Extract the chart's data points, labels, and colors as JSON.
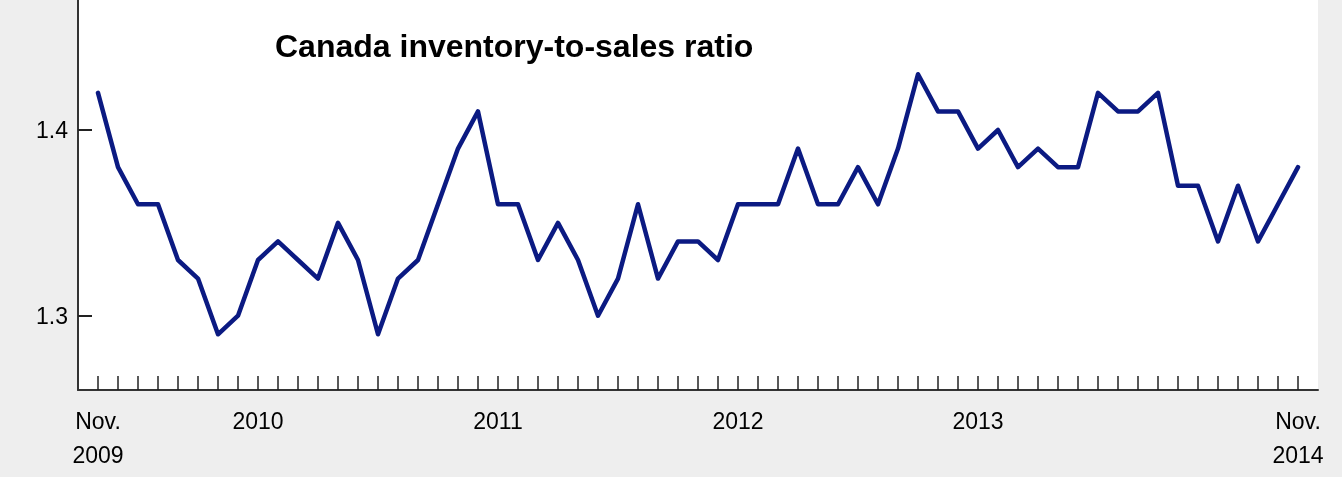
{
  "chart_data": {
    "type": "line",
    "title": "Canada inventory-to-sales ratio",
    "x": [
      "2009-11",
      "2009-12",
      "2010-01",
      "2010-02",
      "2010-03",
      "2010-04",
      "2010-05",
      "2010-06",
      "2010-07",
      "2010-08",
      "2010-09",
      "2010-10",
      "2010-11",
      "2010-12",
      "2011-01",
      "2011-02",
      "2011-03",
      "2011-04",
      "2011-05",
      "2011-06",
      "2011-07",
      "2011-08",
      "2011-09",
      "2011-10",
      "2011-11",
      "2011-12",
      "2012-01",
      "2012-02",
      "2012-03",
      "2012-04",
      "2012-05",
      "2012-06",
      "2012-07",
      "2012-08",
      "2012-09",
      "2012-10",
      "2012-11",
      "2012-12",
      "2013-01",
      "2013-02",
      "2013-03",
      "2013-04",
      "2013-05",
      "2013-06",
      "2013-07",
      "2013-08",
      "2013-09",
      "2013-10",
      "2013-11",
      "2013-12",
      "2014-01",
      "2014-02",
      "2014-03",
      "2014-04",
      "2014-05",
      "2014-06",
      "2014-07",
      "2014-08",
      "2014-09",
      "2014-10",
      "2014-11"
    ],
    "series": [
      {
        "color": "#0b1a82",
        "values": [
          1.42,
          1.38,
          1.36,
          1.36,
          1.33,
          1.32,
          1.29,
          1.3,
          1.33,
          1.34,
          1.33,
          1.32,
          1.35,
          1.33,
          1.29,
          1.32,
          1.33,
          1.36,
          1.39,
          1.41,
          1.36,
          1.36,
          1.33,
          1.35,
          1.33,
          1.3,
          1.32,
          1.36,
          1.32,
          1.34,
          1.34,
          1.33,
          1.36,
          1.36,
          1.36,
          1.39,
          1.36,
          1.36,
          1.38,
          1.36,
          1.39,
          1.43,
          1.41,
          1.41,
          1.39,
          1.4,
          1.38,
          1.39,
          1.38,
          1.38,
          1.42,
          1.41,
          1.41,
          1.42,
          1.37,
          1.37,
          1.34,
          1.37,
          1.34,
          1.36,
          1.38
        ]
      }
    ],
    "xlim": [
      "2009-10",
      "2014-12"
    ],
    "xticks": [
      {
        "value": "2009-11",
        "label": "Nov.\n2009"
      },
      {
        "value": "2009-12",
        "label": null
      },
      {
        "value": "2010-01",
        "label": null
      },
      {
        "value": "2010-02",
        "label": null
      },
      {
        "value": "2010-03",
        "label": null
      },
      {
        "value": "2010-04",
        "label": null
      },
      {
        "value": "2010-05",
        "label": null
      },
      {
        "value": "2010-06",
        "label": null
      },
      {
        "value": "2010-07",
        "label": "2010"
      },
      {
        "value": "2010-08",
        "label": null
      },
      {
        "value": "2010-09",
        "label": null
      },
      {
        "value": "2010-10",
        "label": null
      },
      {
        "value": "2010-11",
        "label": null
      },
      {
        "value": "2010-12",
        "label": null
      },
      {
        "value": "2011-01",
        "label": null
      },
      {
        "value": "2011-02",
        "label": null
      },
      {
        "value": "2011-03",
        "label": null
      },
      {
        "value": "2011-04",
        "label": null
      },
      {
        "value": "2011-05",
        "label": null
      },
      {
        "value": "2011-06",
        "label": null
      },
      {
        "value": "2011-07",
        "label": "2011"
      },
      {
        "value": "2011-08",
        "label": null
      },
      {
        "value": "2011-09",
        "label": null
      },
      {
        "value": "2011-10",
        "label": null
      },
      {
        "value": "2011-11",
        "label": null
      },
      {
        "value": "2011-12",
        "label": null
      },
      {
        "value": "2012-01",
        "label": null
      },
      {
        "value": "2012-02",
        "label": null
      },
      {
        "value": "2012-03",
        "label": null
      },
      {
        "value": "2012-04",
        "label": null
      },
      {
        "value": "2012-05",
        "label": null
      },
      {
        "value": "2012-06",
        "label": null
      },
      {
        "value": "2012-07",
        "label": "2012"
      },
      {
        "value": "2012-08",
        "label": null
      },
      {
        "value": "2012-09",
        "label": null
      },
      {
        "value": "2012-10",
        "label": null
      },
      {
        "value": "2012-11",
        "label": null
      },
      {
        "value": "2012-12",
        "label": null
      },
      {
        "value": "2013-01",
        "label": null
      },
      {
        "value": "2013-02",
        "label": null
      },
      {
        "value": "2013-03",
        "label": null
      },
      {
        "value": "2013-04",
        "label": null
      },
      {
        "value": "2013-05",
        "label": null
      },
      {
        "value": "2013-06",
        "label": null
      },
      {
        "value": "2013-07",
        "label": "2013"
      },
      {
        "value": "2013-08",
        "label": null
      },
      {
        "value": "2013-09",
        "label": null
      },
      {
        "value": "2013-10",
        "label": null
      },
      {
        "value": "2013-11",
        "label": null
      },
      {
        "value": "2013-12",
        "label": null
      },
      {
        "value": "2014-01",
        "label": null
      },
      {
        "value": "2014-02",
        "label": null
      },
      {
        "value": "2014-03",
        "label": null
      },
      {
        "value": "2014-04",
        "label": null
      },
      {
        "value": "2014-05",
        "label": null
      },
      {
        "value": "2014-06",
        "label": null
      },
      {
        "value": "2014-07",
        "label": null
      },
      {
        "value": "2014-08",
        "label": null
      },
      {
        "value": "2014-09",
        "label": null
      },
      {
        "value": "2014-10",
        "label": null
      },
      {
        "value": "2014-11",
        "label": "Nov.\n2014"
      }
    ],
    "ylim": [
      1.26,
      1.47
    ],
    "yticks": [
      1.3,
      1.4
    ],
    "grid": false,
    "marker": "none",
    "line_style": "solid"
  }
}
